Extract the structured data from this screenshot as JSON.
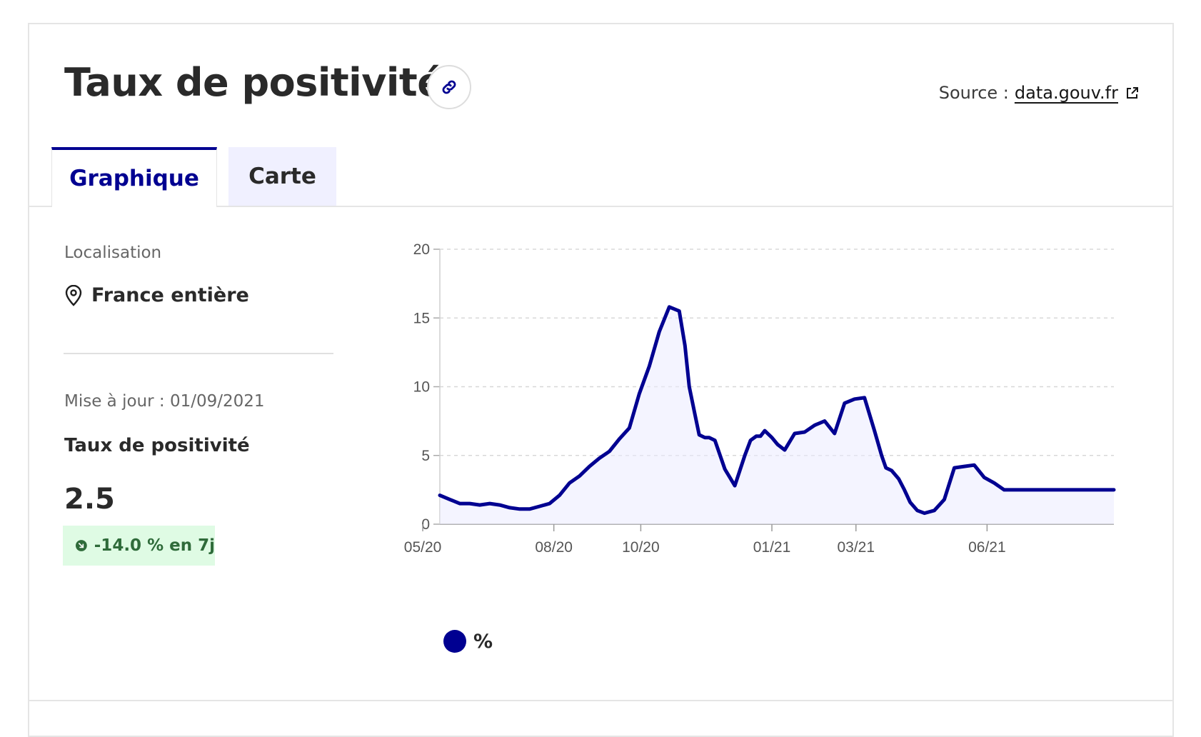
{
  "header": {
    "title": "Taux de positivité",
    "link_icon": "link-icon",
    "source_prefix": "Source :",
    "source_link": "data.gouv.fr",
    "external_icon": "external-link-icon"
  },
  "tabs": [
    {
      "label": "Graphique",
      "active": true
    },
    {
      "label": "Carte",
      "active": false
    }
  ],
  "sidebar": {
    "location_label": "Localisation",
    "location_icon": "map-pin-icon",
    "location_value": "France entière",
    "updated": "Mise à jour : 01/09/2021",
    "metric_label": "Taux de positivité",
    "metric_value": "2.5",
    "trend_icon": "arrow-down-right-icon",
    "trend_text": "-14.0 % en 7j"
  },
  "colors": {
    "accent": "#000091",
    "fill": "#ebebff",
    "badge_bg": "#dffbe4",
    "badge_text": "#2f6b3a"
  },
  "chart_data": {
    "type": "area",
    "title": "",
    "xlabel": "",
    "ylabel": "",
    "x_ticks": [
      "05/20",
      "08/20",
      "10/20",
      "01/21",
      "03/21",
      "06/21"
    ],
    "y_ticks": [
      0,
      5,
      10,
      15,
      20
    ],
    "ylim": [
      0,
      20
    ],
    "xlim": [
      "2020-05-13",
      "2021-08-29"
    ],
    "grid": true,
    "legend": "bottom-left",
    "series": [
      {
        "name": "%",
        "color": "#000091",
        "x": [
          "2020-05-13",
          "2020-05-20",
          "2020-05-27",
          "2020-06-03",
          "2020-06-10",
          "2020-06-17",
          "2020-06-24",
          "2020-07-01",
          "2020-07-08",
          "2020-07-15",
          "2020-07-22",
          "2020-07-29",
          "2020-08-05",
          "2020-08-12",
          "2020-08-19",
          "2020-08-26",
          "2020-09-02",
          "2020-09-09",
          "2020-09-16",
          "2020-09-23",
          "2020-09-30",
          "2020-10-07",
          "2020-10-14",
          "2020-10-21",
          "2020-10-28",
          "2020-11-01",
          "2020-11-04",
          "2020-11-08",
          "2020-11-11",
          "2020-11-15",
          "2020-11-18",
          "2020-11-22",
          "2020-11-29",
          "2020-12-06",
          "2020-12-13",
          "2020-12-17",
          "2020-12-21",
          "2020-12-24",
          "2020-12-27",
          "2021-01-01",
          "2021-01-05",
          "2021-01-10",
          "2021-01-17",
          "2021-01-24",
          "2021-01-31",
          "2021-02-07",
          "2021-02-14",
          "2021-02-21",
          "2021-02-28",
          "2021-03-07",
          "2021-03-14",
          "2021-03-19",
          "2021-03-22",
          "2021-03-26",
          "2021-03-31",
          "2021-04-04",
          "2021-04-08",
          "2021-04-13",
          "2021-04-18",
          "2021-04-25",
          "2021-05-02",
          "2021-05-09",
          "2021-05-16",
          "2021-05-23",
          "2021-05-30",
          "2021-06-06",
          "2021-06-13",
          "2021-06-20",
          "2021-06-27",
          "2021-07-04",
          "2021-07-08",
          "2021-07-11",
          "2021-07-18",
          "2021-07-25",
          "2021-08-01",
          "2021-08-08",
          "2021-08-15",
          "2021-08-22",
          "2021-08-29"
        ],
        "y": [
          2.1,
          1.8,
          1.5,
          1.5,
          1.4,
          1.5,
          1.4,
          1.2,
          1.1,
          1.1,
          1.3,
          1.5,
          2.1,
          3.0,
          3.5,
          4.2,
          4.8,
          5.3,
          6.2,
          7.0,
          9.5,
          11.5,
          14.0,
          15.8,
          15.5,
          13.0,
          10.0,
          8.0,
          6.5,
          6.3,
          6.3,
          6.1,
          4.0,
          2.8,
          5.0,
          6.1,
          6.4,
          6.4,
          6.8,
          6.3,
          5.8,
          5.4,
          6.6,
          6.7,
          7.2,
          7.5,
          6.6,
          8.8,
          9.1,
          9.2,
          6.8,
          5.0,
          4.1,
          3.9,
          3.3,
          2.5,
          1.6,
          1.0,
          0.8,
          1.0,
          1.8,
          4.1,
          4.2,
          4.3,
          3.4,
          3.0,
          2.5,
          2.5,
          2.5,
          2.5,
          2.5,
          2.5,
          2.5,
          2.5,
          2.5,
          2.5,
          2.5,
          2.5,
          2.5
        ]
      }
    ]
  },
  "footer": {}
}
